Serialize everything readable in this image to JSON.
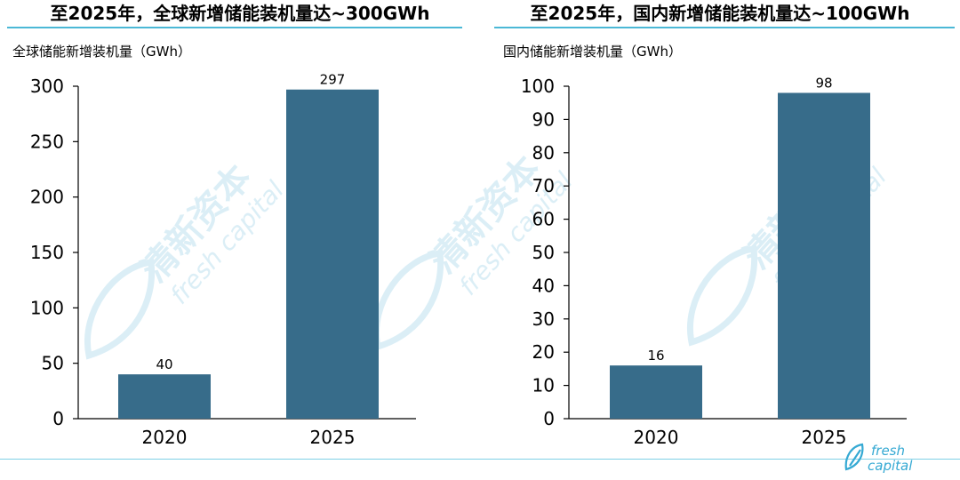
{
  "colors": {
    "accent_rule": "#4bb8d6",
    "bar": "#376c8a",
    "axis": "#000000",
    "watermark": "#cfe9f3",
    "logo": "#35a9d3",
    "bottom_rule": "#7fd0e6"
  },
  "watermark": {
    "cn": "清新资本",
    "en": "fresh capital"
  },
  "logo": {
    "line1": "fresh",
    "line2": "capital",
    "icon": "fresh-capital-leaf-icon"
  },
  "chart_data": [
    {
      "type": "bar",
      "title": "至2025年，全球新增储能装机量达~300GWh",
      "ylabel": "全球储能新增装机量（GWh）",
      "xlabel": "",
      "categories": [
        "2020",
        "2025"
      ],
      "values": [
        40,
        297
      ],
      "ylim": [
        0,
        300
      ],
      "yticks": [
        0,
        50,
        100,
        150,
        200,
        250,
        300
      ],
      "grid": false,
      "legend": "none"
    },
    {
      "type": "bar",
      "title": "至2025年，国内新增储能装机量达~100GWh",
      "ylabel": "国内储能新增装机量（GWh）",
      "xlabel": "",
      "categories": [
        "2020",
        "2025"
      ],
      "values": [
        16,
        98
      ],
      "ylim": [
        0,
        100
      ],
      "yticks": [
        0,
        10,
        20,
        30,
        40,
        50,
        60,
        70,
        80,
        90,
        100
      ],
      "grid": false,
      "legend": "none"
    }
  ]
}
